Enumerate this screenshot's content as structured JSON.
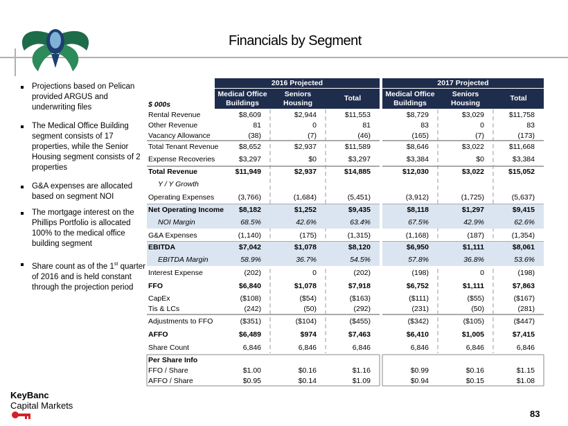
{
  "title": "Financials by Segment",
  "bullets": [
    {
      "text": "Projections based on Pelican provided ARGUS and underwriting files"
    },
    {
      "text": "The Medical Office Building segment consists of 17 properties, while the Senior Housing segment consists of 2 properties"
    },
    {
      "text": "G&A expenses are allocated based on segment NOI"
    },
    {
      "text": "The mortgage interest on the Phillips Portfolio is allocated 100% to the medical office building segment"
    },
    {
      "text": "Share count as of the 1",
      "sup": "st",
      "rest": " quarter of 2016 and is held constant through the projection period"
    }
  ],
  "table": {
    "unit_label": "$ 000s",
    "groups": [
      {
        "name": "2016 Projected",
        "columns": [
          [
            "Medical Office",
            "Buildings"
          ],
          [
            "Seniors",
            "Housing"
          ],
          [
            "Total"
          ]
        ]
      },
      {
        "name": "2017 Projected",
        "columns": [
          [
            "Medical Office",
            "Buildings"
          ],
          [
            "Seniors",
            "Housing"
          ],
          [
            "Total"
          ]
        ]
      }
    ],
    "rows": [
      {
        "label": "Rental Revenue",
        "values": [
          "$8,609",
          "$2,944",
          "$11,553",
          "$8,729",
          "$3,029",
          "$11,758"
        ]
      },
      {
        "label": "Other Revenue",
        "values": [
          "81",
          "0",
          "81",
          "83",
          "0",
          "83"
        ]
      },
      {
        "label": "Vacancy Allowance",
        "values": [
          "(38)",
          "(7)",
          "(46)",
          "(165)",
          "(7)",
          "(173)"
        ]
      },
      {
        "label": "Total Tenant Revenue",
        "values": [
          "$8,652",
          "$2,937",
          "$11,589",
          "$8,646",
          "$3,022",
          "$11,668"
        ]
      },
      {
        "label": "Expense Recoveries",
        "values": [
          "$3,297",
          "$0",
          "$3,297",
          "$3,384",
          "$0",
          "$3,384"
        ]
      },
      {
        "label": "Total Revenue",
        "values": [
          "$11,949",
          "$2,937",
          "$14,885",
          "$12,030",
          "$3,022",
          "$15,052"
        ]
      },
      {
        "label": "Y / Y Growth"
      },
      {
        "label": "Operating Expenses",
        "values": [
          "(3,766)",
          "(1,684)",
          "(5,451)",
          "(3,912)",
          "(1,725)",
          "(5,637)"
        ]
      },
      {
        "label": "Net Operating Income",
        "values": [
          "$8,182",
          "$1,252",
          "$9,435",
          "$8,118",
          "$1,297",
          "$9,415"
        ]
      },
      {
        "label": "NOI Margin",
        "values": [
          "68.5%",
          "42.6%",
          "63.4%",
          "67.5%",
          "42.9%",
          "62.6%"
        ]
      },
      {
        "label": "G&A Expenses",
        "values": [
          "(1,140)",
          "(175)",
          "(1,315)",
          "(1,168)",
          "(187)",
          "(1,354)"
        ]
      },
      {
        "label": "EBITDA",
        "values": [
          "$7,042",
          "$1,078",
          "$8,120",
          "$6,950",
          "$1,111",
          "$8,061"
        ]
      },
      {
        "label": "EBITDA Margin",
        "values": [
          "58.9%",
          "36.7%",
          "54.5%",
          "57.8%",
          "36.8%",
          "53.6%"
        ]
      },
      {
        "label": "Interest Expense",
        "values": [
          "(202)",
          "0",
          "(202)",
          "(198)",
          "0",
          "(198)"
        ]
      },
      {
        "label": "FFO",
        "values": [
          "$6,840",
          "$1,078",
          "$7,918",
          "$6,752",
          "$1,111",
          "$7,863"
        ]
      },
      {
        "label": "CapEx",
        "values": [
          "($108)",
          "($54)",
          "($163)",
          "($111)",
          "($55)",
          "($167)"
        ]
      },
      {
        "label": "Tis & LCs",
        "values": [
          "(242)",
          "(50)",
          "(292)",
          "(231)",
          "(50)",
          "(281)"
        ]
      },
      {
        "label": "Adjustments to FFO",
        "values": [
          "($351)",
          "($104)",
          "($455)",
          "($342)",
          "($105)",
          "($447)"
        ]
      },
      {
        "label": "AFFO",
        "values": [
          "$6,489",
          "$974",
          "$7,463",
          "$6,410",
          "$1,005",
          "$7,415"
        ]
      },
      {
        "label": "Share Count",
        "values": [
          "6,846",
          "6,846",
          "6,846",
          "6,846",
          "6,846",
          "6,846"
        ]
      },
      {
        "label": "Per Share Info"
      },
      {
        "label": "FFO / Share",
        "values": [
          "$1.00",
          "$0.16",
          "$1.16",
          "$0.99",
          "$0.16",
          "$1.15"
        ]
      },
      {
        "label": "AFFO / Share",
        "values": [
          "$0.95",
          "$0.14",
          "$1.09",
          "$0.94",
          "$0.15",
          "$1.08"
        ]
      }
    ]
  },
  "footer": {
    "brand": "KeyBanc",
    "division": "Capital Markets",
    "page_number": "83"
  }
}
